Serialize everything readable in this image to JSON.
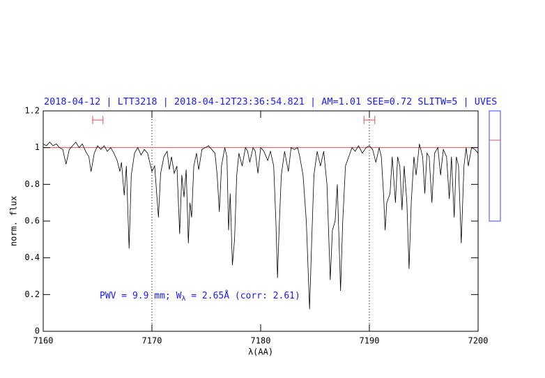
{
  "chart_data": {
    "type": "line",
    "title": "2018-04-12 | LTT3218 | 2018-04-12T23:36:54.821 | AM=1.01 SEE=0.72 SLITW=5 | UVES",
    "x_label": "λ(AA)",
    "y_label": "norm. flux",
    "annotation": [
      "PWV = 9.9 mm; W",
      "λ",
      " = 2.65Å (corr: 2.61)"
    ],
    "color": "#000000",
    "xlim": [
      7160,
      7200
    ],
    "ylim": [
      0,
      1.2
    ],
    "xticks": [
      7160,
      7170,
      7180,
      7190,
      7200
    ],
    "yticks": [
      0,
      0.2,
      0.4,
      0.6,
      0.8,
      1,
      1.2
    ],
    "hline": 1,
    "hline_color": "#e05050",
    "vlines": [
      7170,
      7190
    ],
    "ranges": [
      {
        "x": [
          7164.55,
          7165.5
        ],
        "y": 1.15
      },
      {
        "x": [
          7189.5,
          7190.5
        ],
        "y": 1.15
      }
    ],
    "range_color": "#e05050",
    "x": [
      7160.0,
      7160.3,
      7160.6,
      7160.9,
      7161.2,
      7161.5,
      7161.8,
      7162.1,
      7162.4,
      7162.7,
      7163.0,
      7163.3,
      7163.6,
      7163.9,
      7164.2,
      7164.4,
      7164.7,
      7165.0,
      7165.3,
      7165.6,
      7165.9,
      7166.2,
      7166.5,
      7166.8,
      7167.05,
      7167.2,
      7167.45,
      7167.65,
      7167.9,
      7168.1,
      7168.4,
      7168.7,
      7169.0,
      7169.3,
      7169.6,
      7170.0,
      7170.25,
      7170.6,
      7170.8,
      7171.1,
      7171.4,
      7171.6,
      7171.8,
      7172.05,
      7172.3,
      7172.55,
      7172.75,
      7172.95,
      7173.15,
      7173.35,
      7173.5,
      7173.65,
      7173.85,
      7174.1,
      7174.3,
      7174.6,
      7174.9,
      7175.2,
      7175.5,
      7175.8,
      7176.0,
      7176.2,
      7176.4,
      7176.7,
      7176.9,
      7177.05,
      7177.2,
      7177.4,
      7177.6,
      7177.8,
      7178.0,
      7178.3,
      7178.6,
      7178.8,
      7179.0,
      7179.3,
      7179.5,
      7179.75,
      7180.0,
      7180.3,
      7180.65,
      7180.9,
      7181.2,
      7181.4,
      7181.55,
      7181.7,
      7181.9,
      7182.2,
      7182.55,
      7182.8,
      7183.1,
      7183.4,
      7183.6,
      7183.9,
      7184.2,
      7184.5,
      7184.7,
      7184.9,
      7185.2,
      7185.5,
      7185.8,
      7186.1,
      7186.4,
      7186.6,
      7186.85,
      7187.05,
      7187.35,
      7187.55,
      7187.8,
      7188.1,
      7188.4,
      7188.7,
      7189.0,
      7189.35,
      7189.7,
      7190.0,
      7190.3,
      7190.6,
      7190.9,
      7191.1,
      7191.3,
      7191.45,
      7191.6,
      7191.9,
      7192.1,
      7192.4,
      7192.6,
      7192.8,
      7193.0,
      7193.2,
      7193.45,
      7193.65,
      7193.85,
      7194.1,
      7194.3,
      7194.6,
      7194.9,
      7195.1,
      7195.3,
      7195.5,
      7195.75,
      7196.0,
      7196.3,
      7196.55,
      7196.8,
      7197.1,
      7197.35,
      7197.55,
      7197.8,
      7198.0,
      7198.2,
      7198.45,
      7198.7,
      7198.9,
      7199.1,
      7199.4,
      7199.7,
      7200.0
    ],
    "values": [
      1.02,
      1.01,
      1.03,
      1.01,
      1.02,
      1.0,
      0.99,
      0.91,
      0.99,
      1.01,
      1.03,
      1.0,
      1.02,
      0.98,
      0.95,
      0.87,
      0.97,
      1.01,
      0.99,
      1.01,
      0.98,
      1.0,
      0.97,
      0.93,
      0.87,
      0.92,
      0.74,
      0.9,
      0.45,
      0.85,
      0.97,
      1.0,
      0.96,
      0.99,
      0.97,
      0.87,
      0.9,
      0.62,
      0.86,
      0.95,
      0.98,
      0.88,
      0.95,
      0.86,
      0.9,
      0.53,
      0.85,
      0.73,
      0.88,
      0.48,
      0.7,
      0.62,
      0.9,
      0.97,
      0.88,
      0.99,
      1.0,
      1.01,
      0.99,
      0.97,
      0.85,
      0.65,
      0.9,
      1.0,
      0.95,
      0.55,
      0.75,
      0.36,
      0.5,
      0.85,
      0.97,
      0.9,
      1.0,
      0.98,
      0.92,
      1.0,
      0.98,
      0.86,
      1.0,
      0.98,
      0.93,
      0.98,
      0.9,
      0.6,
      0.29,
      0.56,
      0.85,
      0.98,
      0.87,
      1.0,
      0.99,
      1.0,
      0.95,
      0.85,
      0.6,
      0.12,
      0.5,
      0.85,
      0.98,
      0.9,
      0.98,
      0.8,
      0.28,
      0.55,
      0.6,
      0.8,
      0.22,
      0.6,
      0.9,
      0.95,
      1.0,
      0.98,
      1.01,
      0.97,
      1.0,
      1.01,
      0.99,
      0.92,
      1.0,
      0.95,
      0.75,
      0.55,
      0.7,
      0.75,
      0.95,
      0.7,
      0.95,
      0.9,
      0.66,
      0.9,
      0.7,
      0.34,
      0.7,
      0.95,
      0.85,
      1.02,
      0.95,
      0.75,
      0.97,
      0.95,
      0.7,
      0.97,
      1.0,
      0.85,
      0.99,
      0.95,
      0.72,
      0.95,
      0.62,
      0.95,
      0.9,
      0.48,
      0.9,
      1.0,
      0.9,
      1.0,
      0.99,
      0.97
    ]
  }
}
